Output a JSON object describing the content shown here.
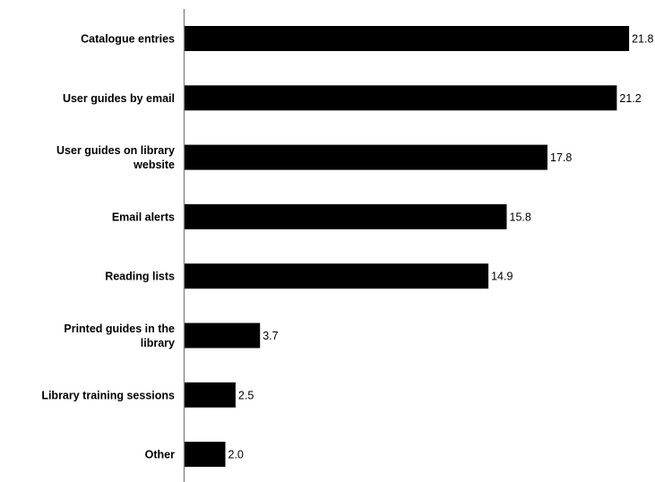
{
  "chart_data": {
    "type": "bar",
    "orientation": "horizontal",
    "categories": [
      "Catalogue entries",
      "User guides by email",
      "User guides on library website",
      "Email alerts",
      "Reading lists",
      "Printed guides in the library",
      "Library training sessions",
      "Other"
    ],
    "values": [
      21.8,
      21.2,
      17.8,
      15.8,
      14.9,
      3.7,
      2.5,
      2.0
    ],
    "value_labels": [
      "21.8",
      "21.2",
      "17.8",
      "15.8",
      "14.9",
      "3.7",
      "2.5",
      "2.0"
    ],
    "title": "",
    "xlabel": "",
    "ylabel": "",
    "xlim": [
      0,
      22.5
    ],
    "grid": false,
    "legend": "none",
    "bar_color": "#000000"
  }
}
